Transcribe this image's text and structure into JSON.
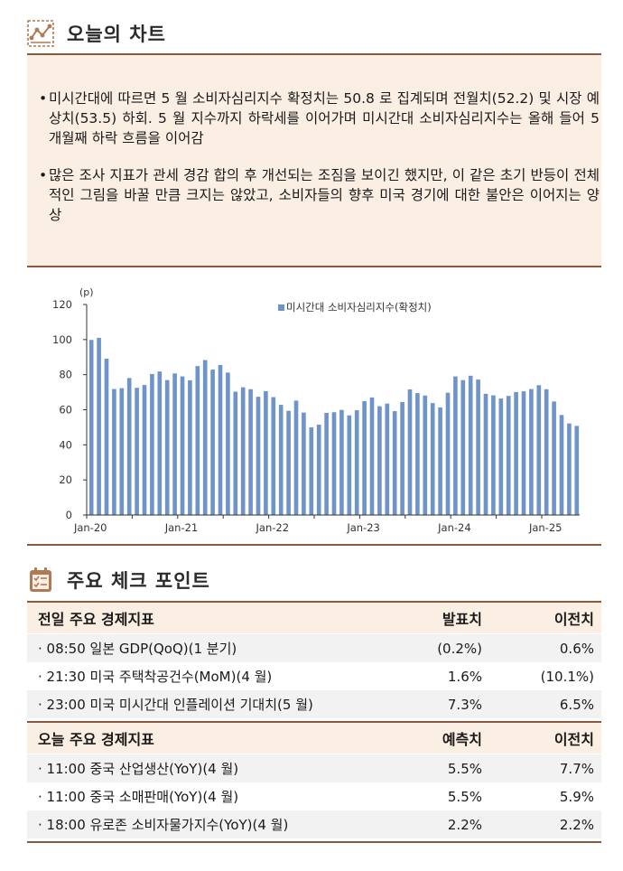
{
  "header": {
    "title": "오늘의 차트",
    "icon": "line-chart-icon"
  },
  "summary": {
    "bullets": [
      "미시간대에 따르면 5 월 소비자심리지수 확정치는 50.8 로 집계되며 전월치(52.2) 및 시장 예상치(53.5) 하회. 5 월 지수까지 하락세를 이어가며 미시간대 소비자심리지수는 올해 들어 5 개월째 하락 흐름을 이어감",
      "많은 조사 지표가 관세 경감 합의 후 개선되는 조짐을 보이긴 했지만, 이 같은 초기 반등이 전체적인 그림을 바꿀 만큼 크지는 않았고, 소비자들의 향후 미국 경기에 대한 불안은 이어지는 양상"
    ]
  },
  "chart_data": {
    "type": "bar",
    "unit_label": "(p)",
    "legend": "미시간대 소비자심리지수(확정치)",
    "legend_position": "top-center",
    "color": "#6f94c9",
    "ylim": [
      0,
      120
    ],
    "yticks": [
      0,
      20,
      40,
      60,
      80,
      100,
      120
    ],
    "xtick_labels": [
      "Jan-20",
      "Jan-21",
      "Jan-22",
      "Jan-23",
      "Jan-24",
      "Jan-25"
    ],
    "xtick_indices": [
      0,
      12,
      24,
      36,
      48,
      60
    ],
    "values": [
      99.8,
      101.0,
      89.1,
      71.8,
      72.3,
      78.1,
      72.5,
      74.1,
      80.4,
      81.8,
      76.9,
      80.7,
      79.0,
      76.8,
      84.9,
      88.3,
      82.9,
      85.5,
      81.2,
      70.3,
      72.8,
      71.7,
      67.4,
      70.6,
      67.2,
      62.8,
      59.4,
      65.2,
      58.4,
      50.0,
      51.5,
      58.2,
      58.6,
      59.9,
      56.8,
      59.7,
      64.9,
      67.0,
      62.0,
      63.5,
      59.2,
      64.4,
      71.6,
      69.5,
      68.1,
      63.8,
      61.3,
      69.7,
      79.0,
      76.9,
      79.4,
      77.2,
      69.1,
      68.2,
      66.4,
      67.9,
      70.1,
      70.5,
      71.8,
      74.0,
      71.7,
      64.7,
      57.0,
      52.2,
      50.8
    ]
  },
  "checkpoints": {
    "title": "주요 체크 포인트",
    "icon": "checklist-icon",
    "yesterday": {
      "label": "전일 주요 경제지표",
      "col1": "발표치",
      "col2": "이전치",
      "rows": [
        {
          "name": "· 08:50 일본 GDP(QoQ)(1 분기)",
          "v1": "(0.2%)",
          "v2": "0.6%"
        },
        {
          "name": "· 21:30 미국 주택착공건수(MoM)(4 월)",
          "v1": "1.6%",
          "v2": "(10.1%)"
        },
        {
          "name": "· 23:00 미국 미시간대 인플레이션 기대치(5 월)",
          "v1": "7.3%",
          "v2": "6.5%"
        }
      ]
    },
    "today": {
      "label": "오늘 주요 경제지표",
      "col1": "예측치",
      "col2": "이전치",
      "rows": [
        {
          "name": "· 11:00 중국 산업생산(YoY)(4 월)",
          "v1": "5.5%",
          "v2": "7.7%"
        },
        {
          "name": "· 11:00 중국 소매판매(YoY)(4 월)",
          "v1": "5.5%",
          "v2": "5.9%"
        },
        {
          "name": "· 18:00 유로존 소비자물가지수(YoY)(4 월)",
          "v1": "2.2%",
          "v2": "2.2%"
        }
      ]
    }
  }
}
